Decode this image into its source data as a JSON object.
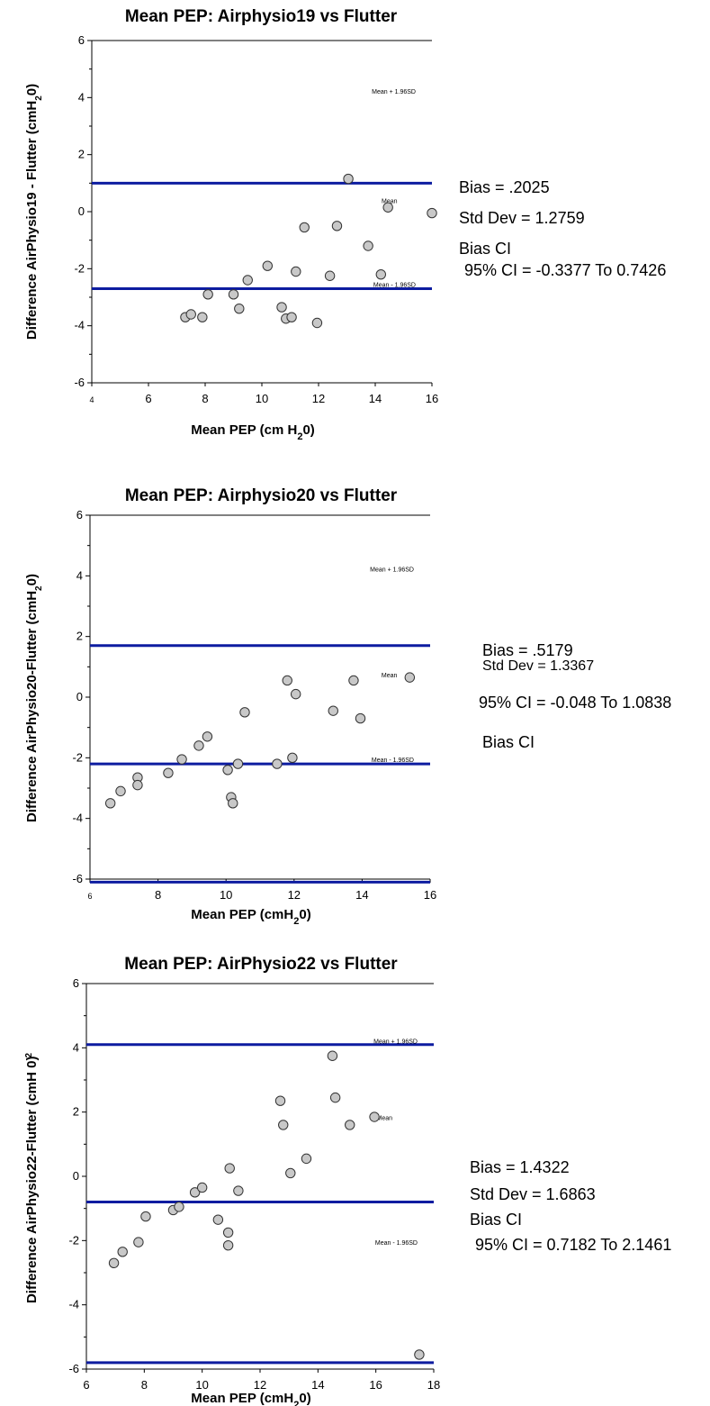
{
  "chart_data": [
    {
      "type": "scatter",
      "title": "Mean PEP: Airphysio19 vs Flutter",
      "xlabel": "Mean PEP (cm H20)",
      "xlabel_parts": [
        "Mean PEP (cm H",
        "2",
        "0)"
      ],
      "ylabel": "Difference AirPhysio19 - Flutter (cmH20)",
      "ylabel_parts": [
        "Difference AirPhysio19 - Flutter (cmH",
        "2",
        "0)"
      ],
      "xlim": [
        4,
        16
      ],
      "ylim": [
        -6,
        6
      ],
      "x_ticks": [
        4,
        6,
        8,
        10,
        12,
        14,
        16
      ],
      "y_ticks": [
        -6,
        -4,
        -2,
        0,
        2,
        4,
        6
      ],
      "grid": false,
      "hlines": [
        {
          "y": 1.0,
          "label": "Mean + 1.96SD"
        },
        {
          "y": -2.7,
          "label": "Mean - 1.96SD"
        }
      ],
      "mean_label": {
        "text": "Mean",
        "x": 14.5,
        "y": 0.3
      },
      "points": [
        [
          7.3,
          -3.7
        ],
        [
          7.5,
          -3.6
        ],
        [
          7.9,
          -3.7
        ],
        [
          8.1,
          -2.9
        ],
        [
          9.0,
          -2.9
        ],
        [
          9.2,
          -3.4
        ],
        [
          9.5,
          -2.4
        ],
        [
          10.2,
          -1.9
        ],
        [
          10.7,
          -3.35
        ],
        [
          10.85,
          -3.75
        ],
        [
          11.05,
          -3.7
        ],
        [
          11.2,
          -2.1
        ],
        [
          11.5,
          -0.55
        ],
        [
          11.95,
          -3.9
        ],
        [
          12.4,
          -2.25
        ],
        [
          12.65,
          -0.5
        ],
        [
          13.05,
          1.15
        ],
        [
          13.75,
          -1.2
        ],
        [
          14.2,
          -2.2
        ],
        [
          14.45,
          0.15
        ],
        [
          16.0,
          -0.05
        ]
      ],
      "stats": [
        "Bias = .2025",
        "Std Dev = 1.2759",
        "Bias CI",
        "95% CI = -0.3377 To 0.7426"
      ]
    },
    {
      "type": "scatter",
      "title": "Mean PEP: Airphysio20 vs Flutter",
      "xlabel": "Mean PEP (cmH20)",
      "xlabel_parts": [
        "Mean PEP (cmH",
        "2",
        "0)"
      ],
      "ylabel": "Difference AirPhysio20-Flutter (cmH20)",
      "ylabel_parts": [
        "Difference AirPhysio20-Flutter (cmH",
        "2",
        "0)"
      ],
      "xlim": [
        6,
        16
      ],
      "ylim": [
        -6,
        6
      ],
      "x_ticks": [
        6,
        8,
        10,
        12,
        14,
        16
      ],
      "y_ticks": [
        -6,
        -4,
        -2,
        0,
        2,
        4,
        6
      ],
      "grid": false,
      "hlines": [
        {
          "y": 1.7,
          "label": "Mean + 1.96SD"
        },
        {
          "y": -2.2,
          "label": "Mean - 1.96SD"
        },
        {
          "y": -6.1,
          "label": ""
        }
      ],
      "mean_label": {
        "text": "Mean",
        "x": 14.8,
        "y": 0.65
      },
      "points": [
        [
          6.6,
          -3.5
        ],
        [
          6.9,
          -3.1
        ],
        [
          7.4,
          -2.65
        ],
        [
          7.4,
          -2.9
        ],
        [
          8.3,
          -2.5
        ],
        [
          8.7,
          -2.05
        ],
        [
          9.2,
          -1.6
        ],
        [
          9.45,
          -1.3
        ],
        [
          10.05,
          -2.4
        ],
        [
          10.15,
          -3.3
        ],
        [
          10.2,
          -3.5
        ],
        [
          10.35,
          -2.2
        ],
        [
          10.55,
          -0.5
        ],
        [
          11.5,
          -2.2
        ],
        [
          11.8,
          0.55
        ],
        [
          11.95,
          -2.0
        ],
        [
          12.05,
          0.1
        ],
        [
          13.15,
          -0.45
        ],
        [
          13.75,
          0.55
        ],
        [
          13.95,
          -0.7
        ],
        [
          15.4,
          0.65
        ]
      ],
      "stats": [
        "Bias = .5179",
        "Std Dev = 1.3367",
        "95% CI = -0.048 To 1.0838",
        "Bias CI"
      ]
    },
    {
      "type": "scatter",
      "title": "Mean PEP: AirPhysio22 vs Flutter",
      "xlabel": "Mean PEP (cmH20)",
      "xlabel_parts": [
        "Mean PEP (cmH",
        "2",
        "0)"
      ],
      "ylabel": "Difference AirPhysio22-Flutter (cmH 0)",
      "ylabel_parts": [
        "Difference AirPhysio22-Flutter (cmH 0)",
        "2"
      ],
      "xlim": [
        6,
        18
      ],
      "ylim": [
        -6,
        6
      ],
      "x_ticks": [
        6,
        8,
        10,
        12,
        14,
        16,
        18
      ],
      "y_ticks": [
        -6,
        -4,
        -2,
        0,
        2,
        4,
        6
      ],
      "grid": false,
      "hlines": [
        {
          "y": 4.1,
          "label": "Mean + 1.96SD"
        },
        {
          "y": -0.8,
          "label": "Mean - 1.96SD"
        },
        {
          "y": -5.8,
          "label": ""
        }
      ],
      "mean_label": {
        "text": "Mean",
        "x": 16.3,
        "y": 1.75
      },
      "points": [
        [
          6.95,
          -2.7
        ],
        [
          7.25,
          -2.35
        ],
        [
          7.8,
          -2.05
        ],
        [
          8.05,
          -1.25
        ],
        [
          9.0,
          -1.05
        ],
        [
          9.2,
          -0.95
        ],
        [
          9.75,
          -0.5
        ],
        [
          10.0,
          -0.35
        ],
        [
          10.55,
          -1.35
        ],
        [
          10.9,
          -1.75
        ],
        [
          10.9,
          -2.15
        ],
        [
          10.95,
          0.25
        ],
        [
          11.25,
          -0.45
        ],
        [
          12.7,
          2.35
        ],
        [
          12.8,
          1.6
        ],
        [
          13.05,
          0.1
        ],
        [
          13.6,
          0.55
        ],
        [
          14.5,
          3.75
        ],
        [
          14.6,
          2.45
        ],
        [
          15.1,
          1.6
        ],
        [
          15.95,
          1.85
        ],
        [
          17.5,
          -5.55
        ]
      ],
      "stats": [
        "Bias = 1.4322",
        "Std Dev = 1.6863",
        "Bias CI",
        "95% CI = 0.7182 To 2.1461"
      ]
    }
  ]
}
